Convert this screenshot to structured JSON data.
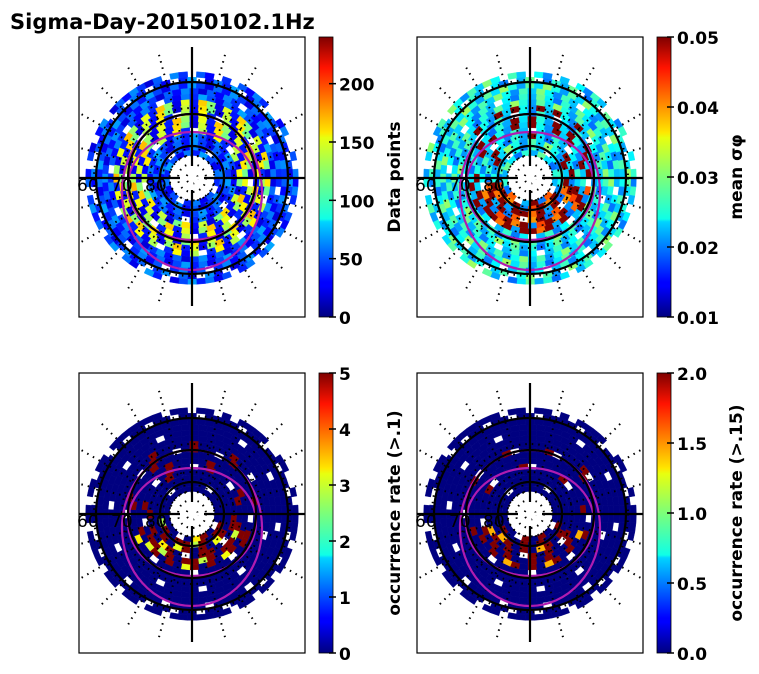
{
  "chart_data": {
    "type": "heatmap",
    "title": "Sigma-Day-20150102.1Hz",
    "projection": "polar (magnetic latitude / local time)",
    "lat_labels": [
      "60",
      "70",
      "80"
    ],
    "lat_range": [
      50,
      90
    ],
    "panels": [
      {
        "id": "data-points",
        "colorbar_label": "Data points",
        "colorbar_range": [
          0,
          240
        ],
        "colorbar_ticks": [
          "0",
          "50",
          "100",
          "150",
          "200"
        ],
        "colorbar_tick_values": [
          0,
          50,
          100,
          150,
          200
        ],
        "colormap": "jet",
        "pattern": "mostly low counts (blue) with a higher-count ring (cyan/yellow/orange) near 65-70 deg",
        "base_value_frac": 0.18,
        "hot_value_frac": 0.55
      },
      {
        "id": "mean-sigma-phi",
        "colorbar_label": "mean σφ",
        "colorbar_range": [
          0.01,
          0.05
        ],
        "colorbar_ticks": [
          "0.01",
          "0.02",
          "0.03",
          "0.04",
          "0.05"
        ],
        "colorbar_tick_values": [
          0.01,
          0.02,
          0.03,
          0.04,
          0.05
        ],
        "colormap": "jet",
        "pattern": "cyan/green (~0.02-0.03) at lower latitudes, dark red (>=0.05) in the auroral oval on the night side",
        "base_value_frac": 0.38,
        "hot_value_frac": 1.0
      },
      {
        "id": "occurrence-rate-0.1",
        "colorbar_label": "occurrence rate (>.1)",
        "colorbar_range": [
          0,
          5
        ],
        "colorbar_ticks": [
          "0",
          "1",
          "2",
          "3",
          "4",
          "5"
        ],
        "colorbar_tick_values": [
          0,
          1,
          2,
          3,
          4,
          5
        ],
        "colormap": "jet",
        "pattern": "near zero (dark blue) everywhere except dark red (>=5) patches in the night-side oval",
        "base_value_frac": 0.0,
        "hot_value_frac": 1.0
      },
      {
        "id": "occurrence-rate-0.15",
        "colorbar_label": "occurrence rate (>.15)",
        "colorbar_range": [
          0.0,
          2.0
        ],
        "colorbar_ticks": [
          "0.0",
          "0.5",
          "1.0",
          "1.5",
          "2.0"
        ],
        "colorbar_tick_values": [
          0.0,
          0.5,
          1.0,
          1.5,
          2.0
        ],
        "colormap": "jet",
        "pattern": "near zero (dark blue) everywhere except sparse dark red (>=2) patches in the night-side oval",
        "base_value_frac": 0.0,
        "hot_value_frac": 1.0
      }
    ],
    "overlays": {
      "black_circles_lat": [
        80,
        70,
        60
      ],
      "magenta_oval_count": 2,
      "dotted_grid": true,
      "crosshair_axes": true
    }
  }
}
